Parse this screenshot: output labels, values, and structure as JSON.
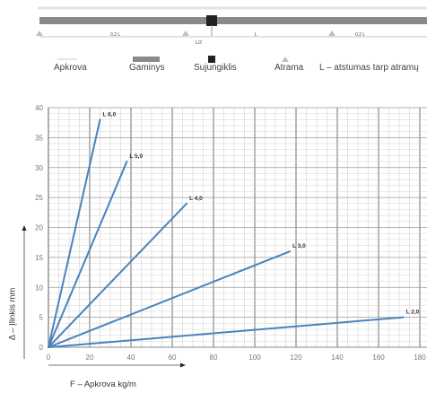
{
  "scheme": {
    "labels": {
      "left_span": "0.2 L",
      "center_mark": "L/2",
      "span": "L",
      "right_span": "0.2 L"
    }
  },
  "legend": {
    "load": "Apkrova",
    "product": "Gaminys",
    "connector": "Sujungiklis",
    "support": "Atrama",
    "distance": "L – atstumas tarp atramų"
  },
  "colors": {
    "line": "#4a83bd",
    "grid": "#c9c9c9",
    "major_grid": "#9a9a9a",
    "axis_text": "#777777"
  },
  "chart_data": {
    "type": "line",
    "xlabel": "F – Apkrova kg/m",
    "ylabel": "Δ – Įlinkis mm",
    "xlim": [
      0,
      180
    ],
    "ylim": [
      0,
      40
    ],
    "x_ticks": [
      0,
      20,
      40,
      60,
      80,
      100,
      120,
      140,
      160,
      180
    ],
    "y_ticks": [
      0,
      5,
      10,
      15,
      20,
      25,
      30,
      35,
      40
    ],
    "grid": true,
    "series": [
      {
        "name": "L 6,0",
        "points": [
          [
            0,
            0
          ],
          [
            25,
            38
          ]
        ]
      },
      {
        "name": "L 5,0",
        "points": [
          [
            0,
            0
          ],
          [
            38,
            31
          ]
        ]
      },
      {
        "name": "L 4,0",
        "points": [
          [
            0,
            0
          ],
          [
            67,
            24
          ]
        ]
      },
      {
        "name": "L 3,0",
        "points": [
          [
            0,
            0
          ],
          [
            117,
            16
          ]
        ]
      },
      {
        "name": "L 2,0",
        "points": [
          [
            0,
            0
          ],
          [
            172,
            5
          ]
        ]
      }
    ]
  }
}
